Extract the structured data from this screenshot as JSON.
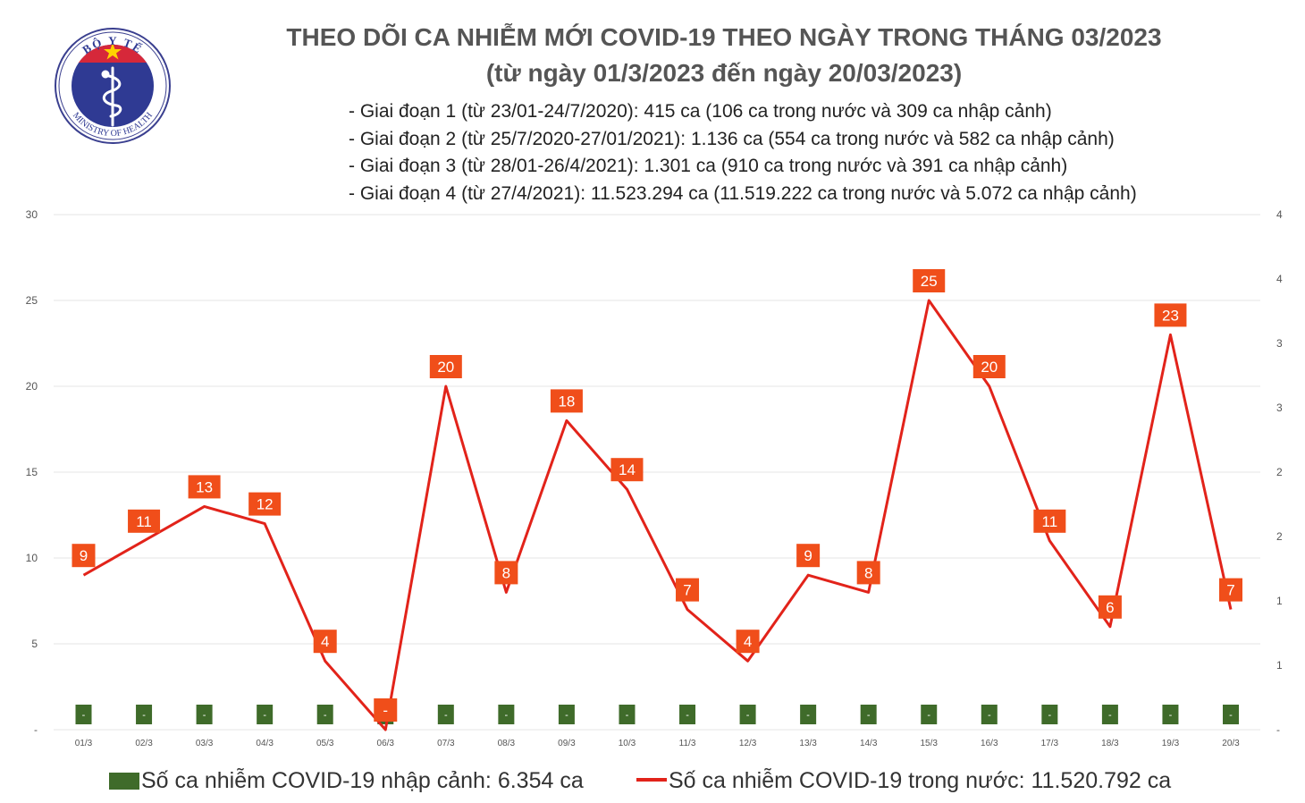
{
  "header": {
    "title_line1": "THEO DÕI CA NHIỄM MỚI COVID-19 THEO NGÀY TRONG THÁNG 03/2023",
    "title_line2": "(từ ngày 01/3/2023 đến ngày 20/03/2023)",
    "stages": [
      "- Giai đoạn 1 (từ 23/01-24/7/2020): 415 ca (106 ca trong nước và 309 ca nhập cảnh)",
      "- Giai đoạn 2 (từ 25/7/2020-27/01/2021): 1.136 ca (554 ca trong nước và 582 ca nhập cảnh)",
      "- Giai đoạn 3 (từ 28/01-26/4/2021): 1.301 ca (910 ca trong nước và 391 ca nhập cảnh)",
      "- Giai đoạn 4 (từ 27/4/2021): 11.523.294 ca (11.519.222 ca trong nước và 5.072 ca nhập cảnh)"
    ]
  },
  "logo": {
    "top_text": "BỘ Y TẾ",
    "bottom_text": "MINISTRY OF HEALTH",
    "icon": "caduceus-icon"
  },
  "legend": {
    "imported_label": "Số ca nhiễm COVID-19 nhập cảnh: 6.354 ca",
    "domestic_label": "Số ca nhiễm COVID-19 trong nước: 11.520.792 ca"
  },
  "colors": {
    "line": "#e2231a",
    "label_box": "#f04e1a",
    "bar": "#3f6b2a",
    "grid": "#e6e6e6",
    "title": "#555555",
    "axis_text": "#555555"
  },
  "chart_data": {
    "type": "line",
    "categories": [
      "01/3",
      "02/3",
      "03/3",
      "04/3",
      "05/3",
      "06/3",
      "07/3",
      "08/3",
      "09/3",
      "10/3",
      "11/3",
      "12/3",
      "13/3",
      "14/3",
      "15/3",
      "16/3",
      "17/3",
      "18/3",
      "19/3",
      "20/3"
    ],
    "series": [
      {
        "name": "Số ca nhiễm COVID-19 trong nước",
        "kind": "line",
        "axis": "left",
        "values": [
          9,
          11,
          13,
          12,
          4,
          0,
          20,
          8,
          18,
          14,
          7,
          4,
          9,
          8,
          25,
          20,
          11,
          6,
          23,
          7
        ],
        "data_labels": [
          "9",
          "11",
          "13",
          "12",
          "4",
          "-",
          "20",
          "8",
          "18",
          "14",
          "7",
          "4",
          "9",
          "8",
          "25",
          "20",
          "11",
          "6",
          "23",
          "7"
        ]
      },
      {
        "name": "Số ca nhiễm COVID-19 nhập cảnh",
        "kind": "bar",
        "axis": "right",
        "values": [
          0,
          0,
          0,
          0,
          0,
          0,
          0,
          0,
          0,
          0,
          0,
          0,
          0,
          0,
          0,
          0,
          0,
          0,
          0,
          0
        ],
        "data_labels": [
          "-",
          "-",
          "-",
          "-",
          "-",
          "-",
          "-",
          "-",
          "-",
          "-",
          "-",
          "-",
          "-",
          "-",
          "-",
          "-",
          "-",
          "-",
          "-",
          "-"
        ]
      }
    ],
    "y_left": {
      "ylim": [
        0,
        30
      ],
      "ticks": [
        "-",
        "5",
        "10",
        "15",
        "20",
        "25",
        "30"
      ]
    },
    "y_right": {
      "ylim": [
        0,
        4
      ],
      "ticks": [
        "-",
        "1",
        "1",
        "2",
        "2",
        "3",
        "3",
        "4",
        "4"
      ]
    },
    "grid": true,
    "legend_position": "bottom"
  }
}
